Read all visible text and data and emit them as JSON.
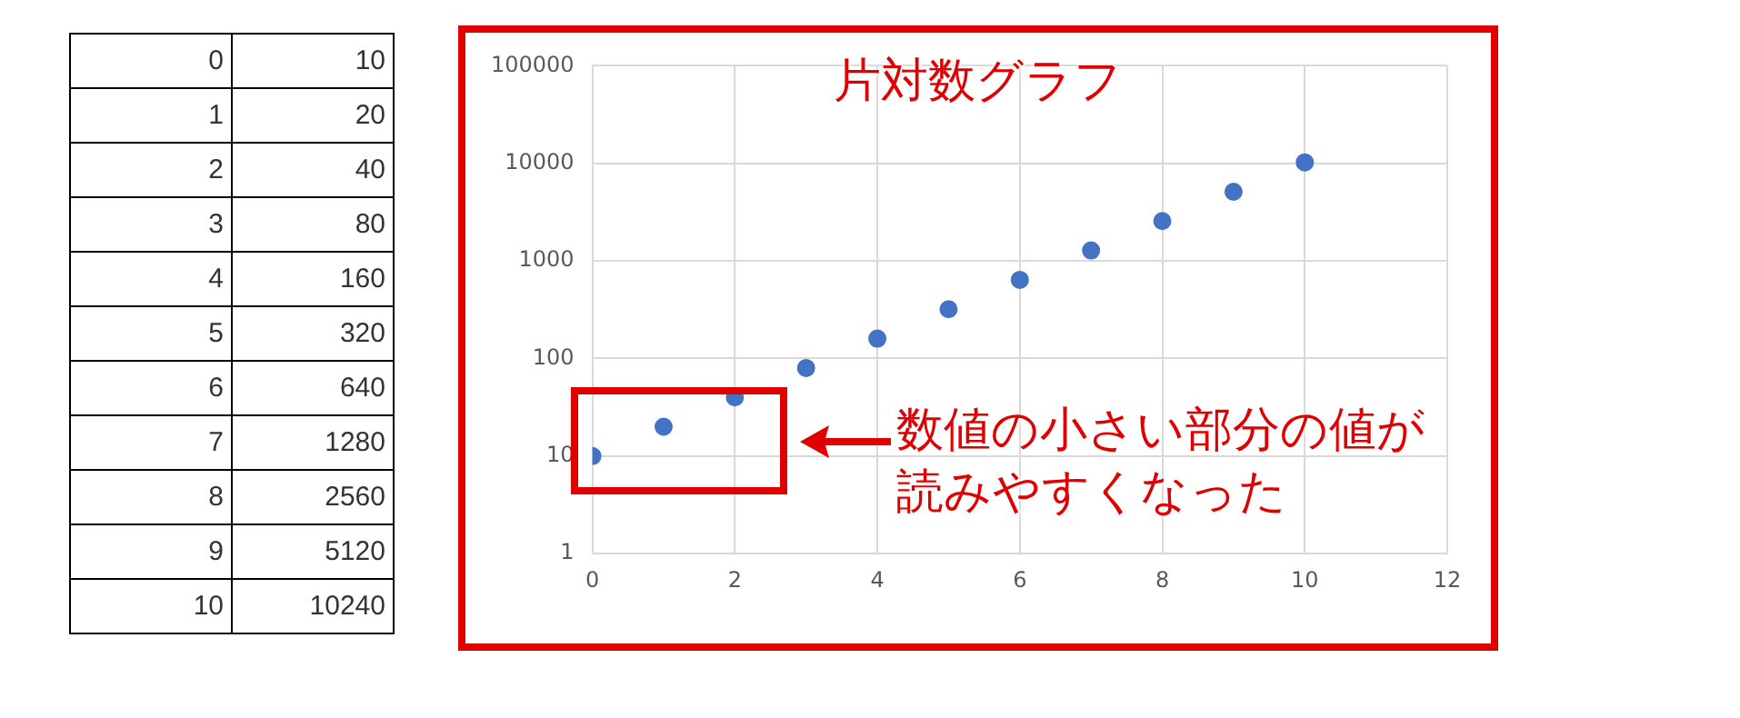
{
  "chart_data": {
    "type": "scatter",
    "title": "片対数グラフ",
    "x": [
      0,
      1,
      2,
      3,
      4,
      5,
      6,
      7,
      8,
      9,
      10
    ],
    "values": [
      10,
      20,
      40,
      80,
      160,
      320,
      640,
      1280,
      2560,
      5120,
      10240
    ],
    "color": "#4472c4",
    "marker": "circle",
    "log": "y",
    "grid": true,
    "legend": false,
    "xlim": [
      0,
      12
    ],
    "xticks": [
      0,
      2,
      4,
      6,
      8,
      10,
      12
    ],
    "ylim": [
      1,
      100000
    ],
    "yticks": [
      1,
      10,
      100,
      1000,
      10000,
      100000
    ],
    "annotations": [
      "0",
      "10",
      "1",
      "20",
      "2",
      "40",
      "3",
      "80",
      "4",
      "160",
      "5",
      "320",
      "6",
      "640",
      "7",
      "1280",
      "8",
      "2560",
      "9",
      "5120",
      "10",
      "10240",
      "数値の小さい部分の値が読みやすくなった"
    ]
  }
}
